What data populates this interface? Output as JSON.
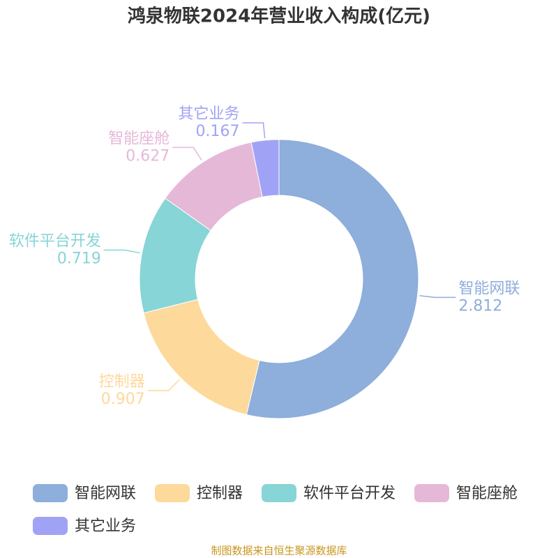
{
  "chart_data": {
    "type": "donut",
    "title": "鸿泉物联2024年营业收入构成(亿元)",
    "categories": [
      "智能网联",
      "控制器",
      "软件平台开发",
      "智能座舱",
      "其它业务"
    ],
    "values": [
      2.812,
      0.907,
      0.719,
      0.627,
      0.167
    ],
    "colors": [
      "#8eaedb",
      "#fdd99b",
      "#87d5d6",
      "#e6b8d8",
      "#a0a3f5"
    ],
    "legend": "bottom",
    "source": "制图数据来自恒生聚源数据库"
  }
}
